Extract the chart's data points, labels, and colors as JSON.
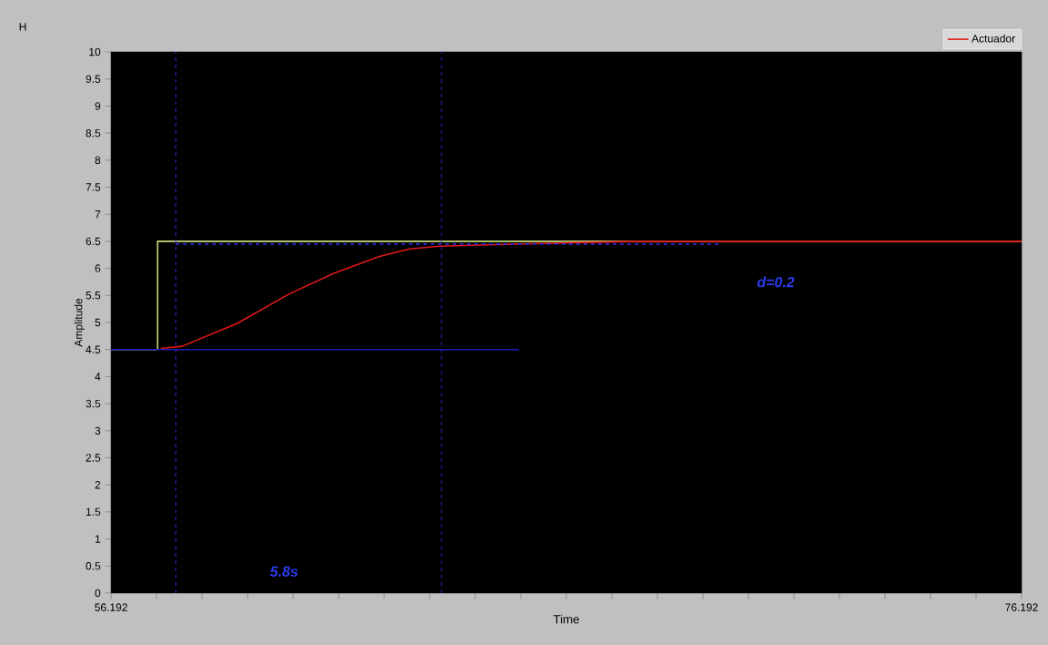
{
  "chart_data": {
    "type": "line",
    "title": "H",
    "xlabel": "Time",
    "ylabel": "Amplitude",
    "xlim": [
      56.192,
      76.192
    ],
    "ylim": [
      0,
      10
    ],
    "xticks": [
      56.192,
      {
        "value": 57.192,
        "label": null
      },
      {
        "value": 58.192,
        "label": null
      },
      {
        "value": 59.192,
        "label": null
      },
      {
        "value": 60.192,
        "label": null
      },
      {
        "value": 61.192,
        "label": null
      },
      {
        "value": 62.192,
        "label": null
      },
      {
        "value": 63.192,
        "label": null
      },
      {
        "value": 64.192,
        "label": null
      },
      {
        "value": 65.192,
        "label": null
      },
      {
        "value": 66.192,
        "label": null
      },
      {
        "value": 67.192,
        "label": null
      },
      {
        "value": 68.192,
        "label": null
      },
      {
        "value": 69.192,
        "label": null
      },
      {
        "value": 70.192,
        "label": null
      },
      {
        "value": 71.192,
        "label": null
      },
      {
        "value": 72.192,
        "label": null
      },
      {
        "value": 73.192,
        "label": null
      },
      {
        "value": 74.192,
        "label": null
      },
      {
        "value": 75.192,
        "label": null
      },
      76.192
    ],
    "yticks": [
      0,
      0.5,
      1,
      1.5,
      2,
      2.5,
      3,
      3.5,
      4,
      4.5,
      5,
      5.5,
      6,
      6.5,
      7,
      7.5,
      8,
      8.5,
      9,
      9.5,
      10
    ],
    "series": [
      {
        "type": "step",
        "color": "#c8dc78",
        "x": [
          56.192,
          57.212,
          76.192
        ],
        "values": [
          4.5,
          6.5,
          6.5
        ]
      },
      {
        "name": "Actuador",
        "color": "#e01818",
        "x": [
          57.286,
          57.752,
          58.952,
          60.086,
          61.086,
          62.086,
          62.752,
          63.412,
          65.086,
          67.75,
          76.192
        ],
        "values": [
          4.52,
          4.56,
          4.98,
          5.52,
          5.91,
          6.22,
          6.36,
          6.41,
          6.45,
          6.5,
          6.5
        ]
      },
      {
        "color": "#1c1cb4",
        "x": [
          56.192,
          65.152
        ],
        "values": [
          4.5,
          4.5
        ]
      },
      {
        "color": "#2a2ad0",
        "line_style": "dashed",
        "x": [
          57.612,
          69.552
        ],
        "values": [
          6.45,
          6.45
        ]
      }
    ],
    "ref_lines": [
      {
        "axis": "x",
        "value": 57.612,
        "color": "#2a2ad0",
        "line_style": "dashed"
      },
      {
        "axis": "x",
        "value": 63.452,
        "color": "#2a2ad0",
        "line_style": "dashed"
      }
    ],
    "annotations": [
      "5.8s",
      "d=0.2"
    ],
    "legend": "top right"
  }
}
